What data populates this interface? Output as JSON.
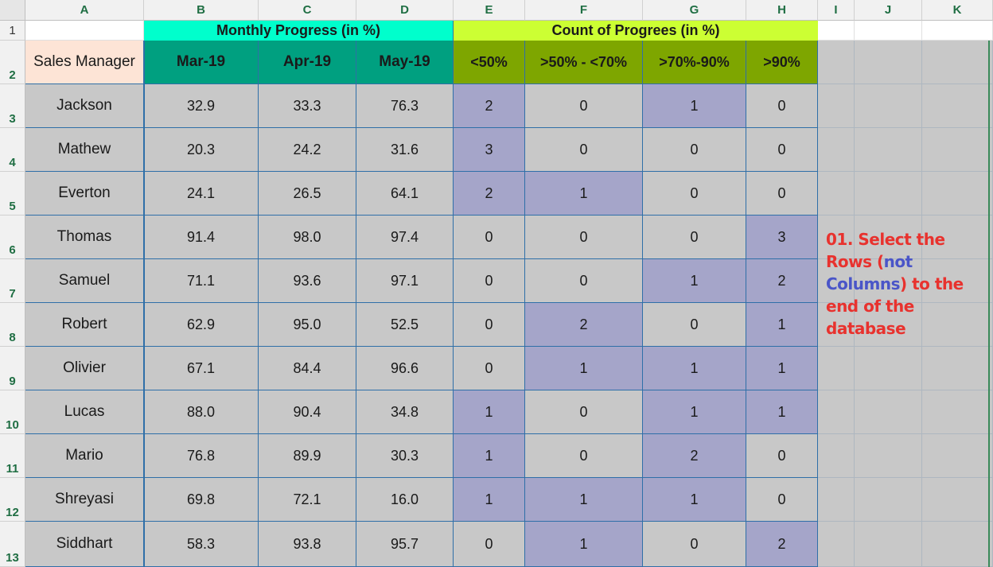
{
  "columns": [
    "A",
    "B",
    "C",
    "D",
    "E",
    "F",
    "G",
    "H",
    "I",
    "J",
    "K"
  ],
  "rows": [
    "1",
    "2",
    "3",
    "4",
    "5",
    "6",
    "7",
    "8",
    "9",
    "10",
    "11",
    "12",
    "13"
  ],
  "group_headers": {
    "monthly": "Monthly Progress (in %)",
    "count": "Count of Progrees (in %)"
  },
  "headers": {
    "manager": "Sales Manager",
    "months": [
      "Mar-19",
      "Apr-19",
      "May-19"
    ],
    "ranges": [
      "<50%",
      ">50% - <70%",
      ">70%-90%",
      ">90%"
    ]
  },
  "table": [
    {
      "name": "Jackson",
      "m": [
        "32.9",
        "33.3",
        "76.3"
      ],
      "c": [
        "2",
        "0",
        "1",
        "0"
      ]
    },
    {
      "name": "Mathew",
      "m": [
        "20.3",
        "24.2",
        "31.6"
      ],
      "c": [
        "3",
        "0",
        "0",
        "0"
      ]
    },
    {
      "name": "Everton",
      "m": [
        "24.1",
        "26.5",
        "64.1"
      ],
      "c": [
        "2",
        "1",
        "0",
        "0"
      ]
    },
    {
      "name": "Thomas",
      "m": [
        "91.4",
        "98.0",
        "97.4"
      ],
      "c": [
        "0",
        "0",
        "0",
        "3"
      ]
    },
    {
      "name": "Samuel",
      "m": [
        "71.1",
        "93.6",
        "97.1"
      ],
      "c": [
        "0",
        "0",
        "1",
        "2"
      ]
    },
    {
      "name": "Robert",
      "m": [
        "62.9",
        "95.0",
        "52.5"
      ],
      "c": [
        "0",
        "2",
        "0",
        "1"
      ]
    },
    {
      "name": "Olivier",
      "m": [
        "67.1",
        "84.4",
        "96.6"
      ],
      "c": [
        "0",
        "1",
        "1",
        "1"
      ]
    },
    {
      "name": "Lucas",
      "m": [
        "88.0",
        "90.4",
        "34.8"
      ],
      "c": [
        "1",
        "0",
        "1",
        "1"
      ]
    },
    {
      "name": "Mario",
      "m": [
        "76.8",
        "89.9",
        "30.3"
      ],
      "c": [
        "1",
        "0",
        "2",
        "0"
      ]
    },
    {
      "name": "Shreyasi",
      "m": [
        "69.8",
        "72.1",
        "16.0"
      ],
      "c": [
        "1",
        "1",
        "1",
        "0"
      ]
    },
    {
      "name": "Siddhart",
      "m": [
        "58.3",
        "93.8",
        "95.7"
      ],
      "c": [
        "0",
        "1",
        "0",
        "2"
      ]
    }
  ],
  "note": {
    "part1": "01. Select the Rows (",
    "part2": "not Columns",
    "part3": ") to the end of the database"
  },
  "colors": {
    "teal_header": "#00a080",
    "teal_group": "#00ffcc",
    "green_header": "#7ea600",
    "lime_group": "#ccff33",
    "manager_header": "#fde4d6",
    "highlight": "#a5a5c9",
    "cell_gray": "#c8c8c8"
  }
}
